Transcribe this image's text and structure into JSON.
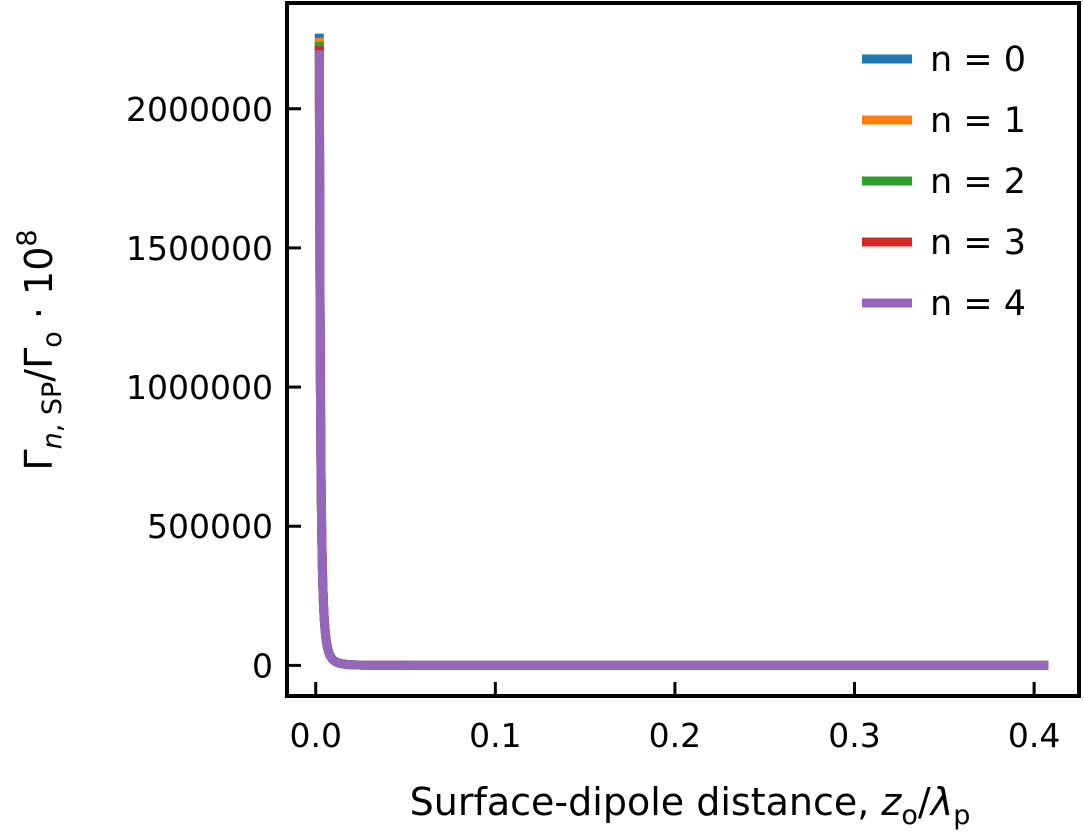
{
  "chart_data": {
    "type": "line",
    "title": "",
    "xlabel_prefix": "Surface-dipole distance, ",
    "xlabel_var": "z",
    "xlabel_var_sub": "o",
    "xlabel_slash": "/",
    "xlabel_lambda": "λ",
    "xlabel_lambda_sub": "p",
    "ylabel_gamma": "Γ",
    "ylabel_gamma_sub_n": "n",
    "ylabel_gamma_sub_rest": ", SP",
    "ylabel_slash": "/",
    "ylabel_gamma2": "Γ",
    "ylabel_gamma2_sub": "o",
    "ylabel_dot": " · 10",
    "ylabel_exp": "8",
    "xlim": [
      -0.016,
      0.425
    ],
    "ylim": [
      -110000,
      2380000
    ],
    "xticks": [
      0.0,
      0.1,
      0.2,
      0.3,
      0.4
    ],
    "xtick_labels": [
      "0.0",
      "0.1",
      "0.2",
      "0.3",
      "0.4"
    ],
    "yticks": [
      0,
      500000,
      1000000,
      1500000,
      2000000
    ],
    "ytick_labels": [
      "0",
      "500000",
      "1000000",
      "1500000",
      "2000000"
    ],
    "legend_position": "upper right",
    "grid": false,
    "x_start": 0.002,
    "x_end": 0.408,
    "series": [
      {
        "name": "n = 0",
        "color": "#1f77b4",
        "peak": 2270000
      },
      {
        "name": "n = 1",
        "color": "#ff7f0e",
        "peak": 2255000
      },
      {
        "name": "n = 2",
        "color": "#2ca02c",
        "peak": 2240000
      },
      {
        "name": "n = 3",
        "color": "#d62728",
        "peak": 2225000
      },
      {
        "name": "n = 4",
        "color": "#9467bd",
        "peak": 2210000
      }
    ]
  }
}
